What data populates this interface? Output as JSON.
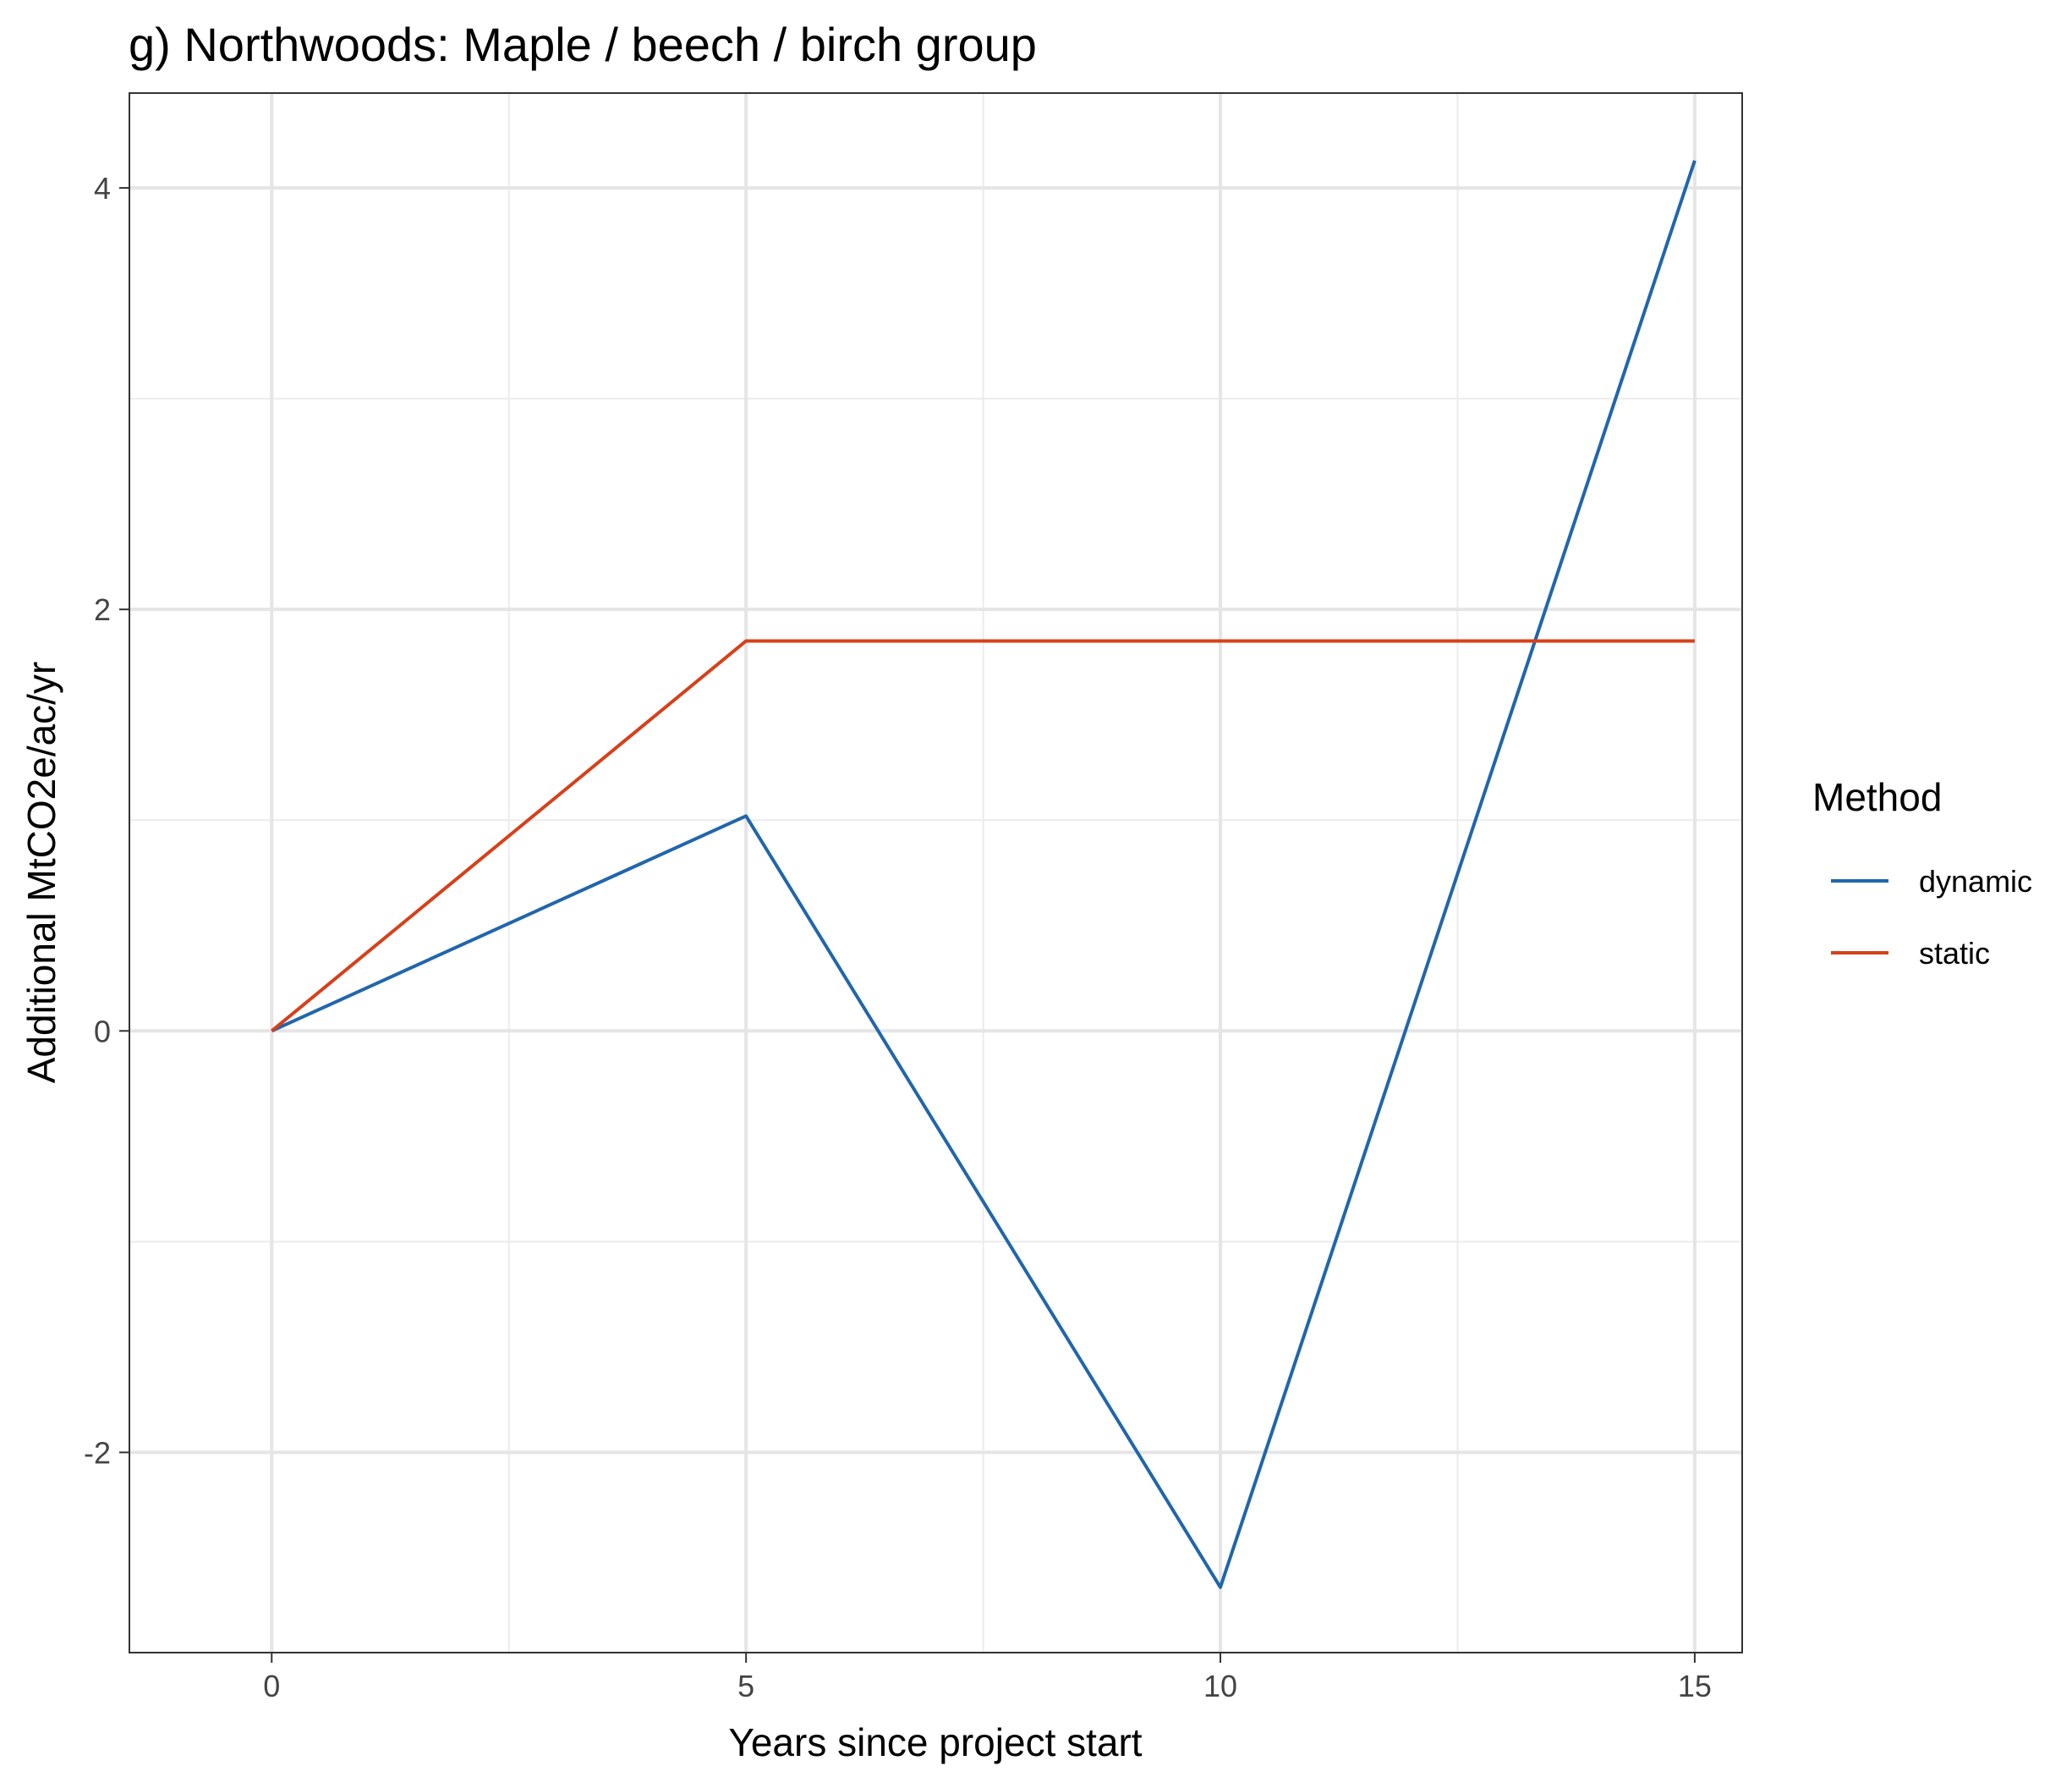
{
  "chart_data": {
    "type": "line",
    "title": "g) Northwoods: Maple / beech / birch group",
    "xlabel": "Years since project start",
    "ylabel": "Additional MtCO2e/ac/yr",
    "xlim": [
      -1.5,
      15.5
    ],
    "ylim": [
      -2.95,
      4.45
    ],
    "xticks": [
      0,
      5,
      10,
      15
    ],
    "xtick_labels": [
      "0",
      "5",
      "10",
      "15"
    ],
    "xminor": [
      2.5,
      7.5,
      12.5
    ],
    "yticks": [
      -2,
      0,
      2,
      4
    ],
    "ytick_labels": [
      "-2",
      "0",
      "2",
      "4"
    ],
    "yminor": [
      -1,
      1,
      3
    ],
    "grid": true,
    "legend": {
      "title": "Method",
      "placement": "right"
    },
    "x": [
      0,
      5,
      10,
      15
    ],
    "series": [
      {
        "name": "dynamic",
        "color": "#2166ac",
        "values": [
          0,
          1.02,
          -2.64,
          4.13
        ]
      },
      {
        "name": "static",
        "color": "#d7401a",
        "values": [
          0,
          1.85,
          1.85,
          1.85
        ]
      }
    ]
  }
}
